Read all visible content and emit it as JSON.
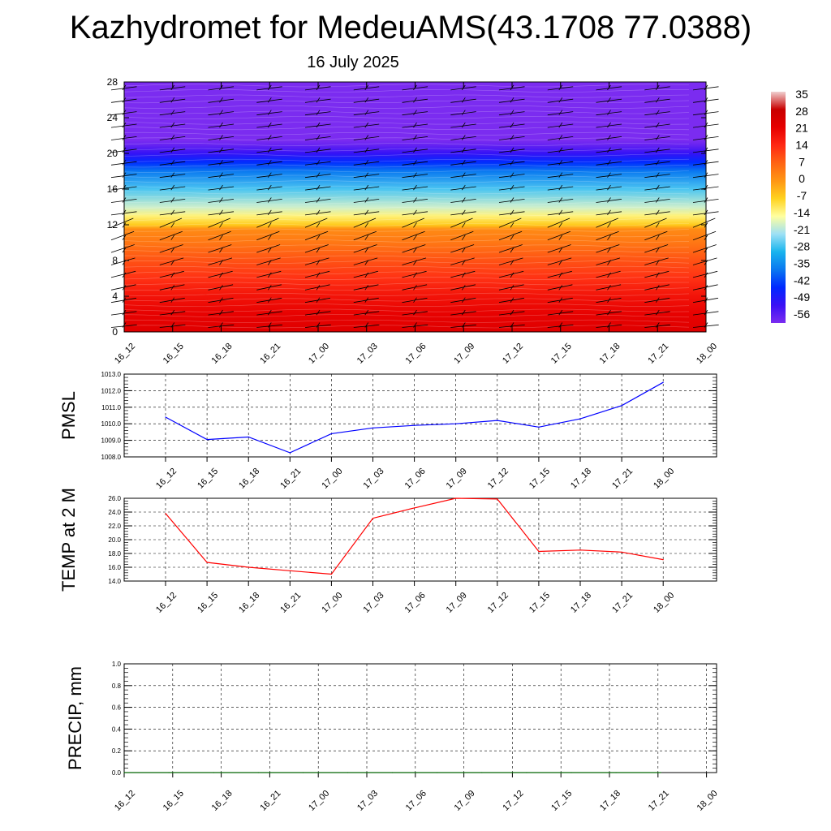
{
  "title": "Kazhydromet for MedeuAMS(43.1708 77.0388)",
  "subtitle": "16 July 2025",
  "colors": {
    "pmsl_line": "#0000ff",
    "temp_line": "#ff0000",
    "precip_line": "#006400",
    "wind_barb": "#000000",
    "grid": "#000000"
  },
  "chart_data": [
    {
      "type": "heatmap",
      "name": "cross-section",
      "categories": [
        "16_12",
        "16_15",
        "16_18",
        "16_21",
        "17_00",
        "17_03",
        "17_06",
        "17_09",
        "17_12",
        "17_15",
        "17_18",
        "17_21",
        "18_00"
      ],
      "yticks": [
        "0",
        "4",
        "8",
        "12",
        "16",
        "20",
        "24",
        "28"
      ],
      "ylim": [
        0,
        28
      ],
      "colorbar": {
        "labels": [
          "35",
          "28",
          "21",
          "14",
          "7",
          "0",
          "-7",
          "-14",
          "-21",
          "-28",
          "-35",
          "-42",
          "-49",
          "-56"
        ],
        "stops": [
          "#7b2cf0",
          "#3a10f5",
          "#0028ff",
          "#0a78f0",
          "#19b4ee",
          "#9ee0f5",
          "#ffffa0",
          "#ffd21e",
          "#ff9614",
          "#ff6414",
          "#ff2814",
          "#e60000",
          "#c80000",
          "#f0d0d0"
        ]
      },
      "temperature_profile": {
        "heights": [
          0,
          2,
          4,
          6,
          8,
          10,
          11.5,
          12,
          13,
          14,
          16,
          18,
          19,
          20,
          21,
          21.5,
          28
        ],
        "values": [
          22,
          20,
          17,
          12,
          8,
          3,
          0,
          -8,
          -14,
          -20,
          -28,
          -38,
          -45,
          -52,
          -58,
          -60,
          -60
        ]
      },
      "grid": false
    },
    {
      "type": "line",
      "ylabel": "PMSL",
      "categories": [
        "16_12",
        "16_15",
        "16_18",
        "16_21",
        "17_00",
        "17_03",
        "17_06",
        "17_09",
        "17_12",
        "17_15",
        "17_18",
        "17_21",
        "18_00"
      ],
      "yticks": [
        "1008.0",
        "1009.0",
        "1010.0",
        "1011.0",
        "1012.0",
        "1013.0"
      ],
      "ylim": [
        1008.0,
        1013.0
      ],
      "series": [
        {
          "values": [
            1010.4,
            1009.05,
            1009.2,
            1008.25,
            1009.4,
            1009.75,
            1009.9,
            1010.0,
            1010.2,
            1009.8,
            1010.3,
            1011.1,
            1012.5
          ]
        }
      ],
      "grid": true
    },
    {
      "type": "line",
      "ylabel": "TEMP at 2 M",
      "categories": [
        "16_12",
        "16_15",
        "16_18",
        "16_21",
        "17_00",
        "17_03",
        "17_06",
        "17_09",
        "17_12",
        "17_15",
        "17_18",
        "17_21",
        "18_00"
      ],
      "yticks": [
        "14.0",
        "16.0",
        "18.0",
        "20.0",
        "22.0",
        "24.0",
        "26.0"
      ],
      "ylim": [
        14.0,
        26.0
      ],
      "series": [
        {
          "values": [
            23.8,
            16.7,
            16.0,
            15.5,
            15.0,
            23.1,
            24.6,
            26.0,
            25.9,
            18.3,
            18.5,
            18.2,
            17.1
          ]
        }
      ],
      "grid": true
    },
    {
      "type": "line",
      "ylabel": "PRECIP, mm",
      "categories": [
        "16_12",
        "16_15",
        "16_18",
        "16_21",
        "17_00",
        "17_03",
        "17_06",
        "17_09",
        "17_12",
        "17_15",
        "17_18",
        "17_21",
        "18_00"
      ],
      "yticks": [
        "0.0",
        "0.2",
        "0.4",
        "0.6",
        "0.8",
        "1.0"
      ],
      "ylim": [
        0.0,
        1.0
      ],
      "series": [
        {
          "values": [
            0,
            0,
            0,
            0,
            0,
            0,
            0,
            0,
            0,
            0,
            0,
            0,
            0
          ]
        }
      ],
      "grid": true
    }
  ]
}
